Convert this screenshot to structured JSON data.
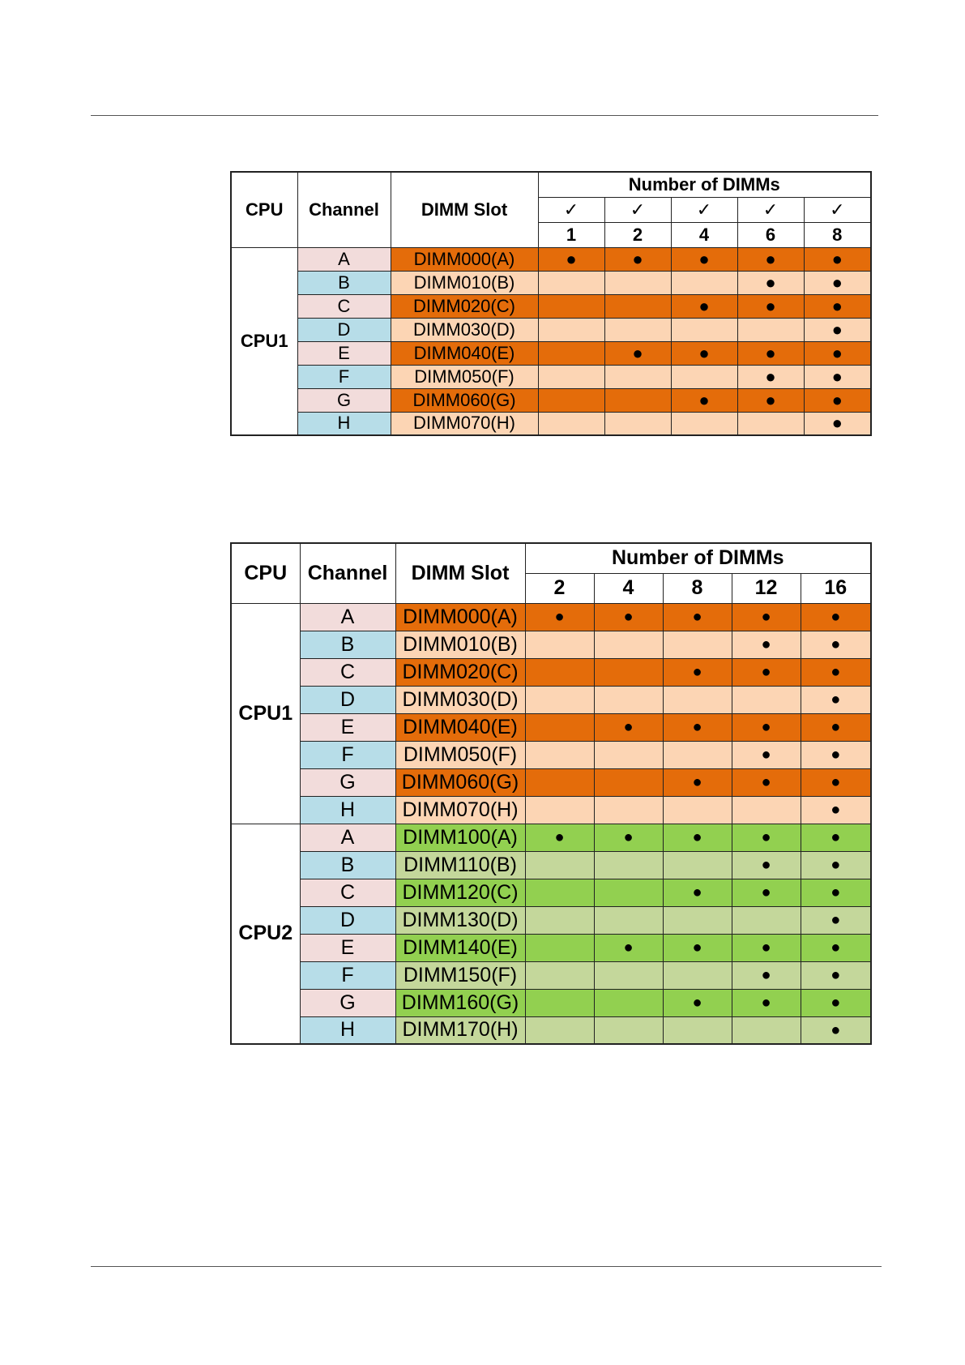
{
  "table1": {
    "headers": {
      "cpu": "CPU",
      "channel": "Channel",
      "slot": "DIMM Slot",
      "number": "Number of DIMMs"
    },
    "checks": [
      "✓",
      "✓",
      "✓",
      "✓",
      "✓"
    ],
    "counts": [
      "1",
      "2",
      "4",
      "6",
      "8"
    ],
    "groups": [
      {
        "cpu": "CPU1",
        "rows": [
          {
            "channel": "A",
            "slot": "DIMM000(A)",
            "cells": [
              "●",
              "●",
              "●",
              "●",
              "●"
            ]
          },
          {
            "channel": "B",
            "slot": "DIMM010(B)",
            "cells": [
              "",
              "",
              "",
              "●",
              "●"
            ]
          },
          {
            "channel": "C",
            "slot": "DIMM020(C)",
            "cells": [
              "",
              "",
              "●",
              "●",
              "●"
            ]
          },
          {
            "channel": "D",
            "slot": "DIMM030(D)",
            "cells": [
              "",
              "",
              "",
              "",
              "●"
            ]
          },
          {
            "channel": "E",
            "slot": "DIMM040(E)",
            "cells": [
              "",
              "●",
              "●",
              "●",
              "●"
            ]
          },
          {
            "channel": "F",
            "slot": "DIMM050(F)",
            "cells": [
              "",
              "",
              "",
              "●",
              "●"
            ]
          },
          {
            "channel": "G",
            "slot": "DIMM060(G)",
            "cells": [
              "",
              "",
              "●",
              "●",
              "●"
            ]
          },
          {
            "channel": "H",
            "slot": "DIMM070(H)",
            "cells": [
              "",
              "",
              "",
              "",
              "●"
            ]
          }
        ]
      }
    ]
  },
  "table2": {
    "headers": {
      "cpu": "CPU",
      "channel": "Channel",
      "slot": "DIMM Slot",
      "number": "Number of DIMMs"
    },
    "counts": [
      "2",
      "4",
      "8",
      "12",
      "16"
    ],
    "groups": [
      {
        "cpu": "CPU1",
        "rows": [
          {
            "channel": "A",
            "slot": "DIMM000(A)",
            "cells": [
              "●",
              "●",
              "●",
              "●",
              "●"
            ]
          },
          {
            "channel": "B",
            "slot": "DIMM010(B)",
            "cells": [
              "",
              "",
              "",
              "●",
              "●"
            ]
          },
          {
            "channel": "C",
            "slot": "DIMM020(C)",
            "cells": [
              "",
              "",
              "●",
              "●",
              "●"
            ]
          },
          {
            "channel": "D",
            "slot": "DIMM030(D)",
            "cells": [
              "",
              "",
              "",
              "",
              "●"
            ]
          },
          {
            "channel": "E",
            "slot": "DIMM040(E)",
            "cells": [
              "",
              "●",
              "●",
              "●",
              "●"
            ]
          },
          {
            "channel": "F",
            "slot": "DIMM050(F)",
            "cells": [
              "",
              "",
              "",
              "●",
              "●"
            ]
          },
          {
            "channel": "G",
            "slot": "DIMM060(G)",
            "cells": [
              "",
              "",
              "●",
              "●",
              "●"
            ]
          },
          {
            "channel": "H",
            "slot": "DIMM070(H)",
            "cells": [
              "",
              "",
              "",
              "",
              "●"
            ]
          }
        ]
      },
      {
        "cpu": "CPU2",
        "rows": [
          {
            "channel": "A",
            "slot": "DIMM100(A)",
            "cells": [
              "●",
              "●",
              "●",
              "●",
              "●"
            ]
          },
          {
            "channel": "B",
            "slot": "DIMM110(B)",
            "cells": [
              "",
              "",
              "",
              "●",
              "●"
            ]
          },
          {
            "channel": "C",
            "slot": "DIMM120(C)",
            "cells": [
              "",
              "",
              "●",
              "●",
              "●"
            ]
          },
          {
            "channel": "D",
            "slot": "DIMM130(D)",
            "cells": [
              "",
              "",
              "",
              "",
              "●"
            ]
          },
          {
            "channel": "E",
            "slot": "DIMM140(E)",
            "cells": [
              "",
              "●",
              "●",
              "●",
              "●"
            ]
          },
          {
            "channel": "F",
            "slot": "DIMM150(F)",
            "cells": [
              "",
              "",
              "",
              "●",
              "●"
            ]
          },
          {
            "channel": "G",
            "slot": "DIMM160(G)",
            "cells": [
              "",
              "",
              "●",
              "●",
              "●"
            ]
          },
          {
            "channel": "H",
            "slot": "DIMM170(H)",
            "cells": [
              "",
              "",
              "",
              "",
              "●"
            ]
          }
        ]
      }
    ]
  },
  "colors": {
    "orange_dark": "#e46c0a",
    "orange_light": "#fcd5b4",
    "green_dark": "#92d050",
    "green_light": "#c4d79b",
    "channel_pink": "#f2dcdb",
    "channel_blue": "#b7dde8"
  }
}
